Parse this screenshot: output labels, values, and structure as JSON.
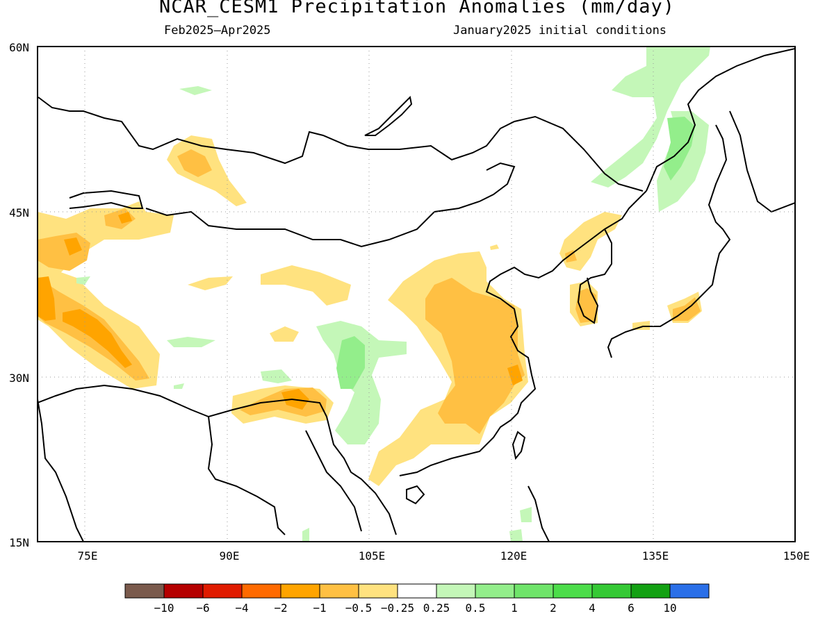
{
  "header": {
    "title": "NCAR_CESM1 Precipitation Anomalies (mm/day)",
    "period": "Feb2025–Apr2025",
    "init": "January2025 initial conditions"
  },
  "map": {
    "lat_range": [
      15,
      60
    ],
    "lon_range": [
      70,
      150
    ],
    "lat_labels": [
      "15N",
      "30N",
      "45N",
      "60N"
    ],
    "lon_labels": [
      "75E",
      "90E",
      "105E",
      "120E",
      "135E",
      "150E"
    ],
    "grid": "dotted"
  },
  "colorbar": {
    "colors": [
      "#7a5a4c",
      "#b50000",
      "#e01b00",
      "#ff6a00",
      "#ffa400",
      "#ffc043",
      "#ffe27f",
      "#ffffff",
      "#c4f7b8",
      "#93ee8b",
      "#6fe46a",
      "#4cdd4a",
      "#35c935",
      "#13a113",
      "#2a6fe8"
    ],
    "labels": [
      "−10",
      "−6",
      "−4",
      "−2",
      "−1",
      "−0.5",
      "−0.25",
      "0.25",
      "0.5",
      "1",
      "2",
      "4",
      "6",
      "10"
    ]
  }
}
